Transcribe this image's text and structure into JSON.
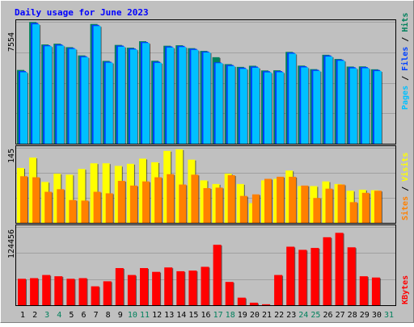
{
  "title": "Daily usage for June 2023",
  "colors": {
    "background": "#c0c0c0",
    "title": "#0000ff",
    "hits": "#00805c",
    "files": "#0040ff",
    "pages": "#00c0ff",
    "visits": "#ffff00",
    "sites": "#ff8000",
    "kbytes": "#ff0000",
    "weekend_label": "#00805c",
    "weekday_label": "#000000"
  },
  "chart_data": [
    {
      "type": "bar",
      "panel": "top",
      "max_label": "7554",
      "ylim": [
        0,
        7554
      ],
      "legend": [
        "Pages",
        "Files",
        "Hits"
      ],
      "categories": [
        "1",
        "2",
        "3",
        "4",
        "5",
        "6",
        "7",
        "8",
        "9",
        "10",
        "11",
        "12",
        "13",
        "14",
        "15",
        "16",
        "17",
        "18",
        "19",
        "20",
        "21",
        "22",
        "23",
        "24",
        "25",
        "26",
        "27",
        "28",
        "29",
        "30",
        "31"
      ],
      "series": [
        {
          "name": "Hits",
          "values": [
            4570,
            7540,
            6150,
            6200,
            5980,
            5470,
            7420,
            5130,
            6120,
            5950,
            6350,
            5140,
            6070,
            6100,
            5920,
            5750,
            5360,
            4930,
            4760,
            4830,
            4540,
            4550,
            5690,
            4840,
            4620,
            5510,
            5250,
            4780,
            4790,
            4610,
            0
          ]
        },
        {
          "name": "Files",
          "values": [
            4500,
            7480,
            6100,
            6150,
            5930,
            5420,
            7360,
            5080,
            6080,
            5900,
            6300,
            5080,
            6030,
            6060,
            5880,
            5710,
            5040,
            4880,
            4710,
            4780,
            4490,
            4500,
            5650,
            4800,
            4580,
            5470,
            5210,
            4740,
            4750,
            4570,
            0
          ]
        },
        {
          "name": "Pages",
          "values": [
            4430,
            7400,
            6040,
            6080,
            5870,
            5360,
            7290,
            5020,
            6010,
            5840,
            6240,
            5010,
            5960,
            5990,
            5810,
            5650,
            4990,
            4810,
            4640,
            4710,
            4420,
            4430,
            5580,
            4730,
            4510,
            5400,
            5140,
            4670,
            4680,
            4500,
            0
          ]
        }
      ]
    },
    {
      "type": "bar",
      "panel": "middle",
      "max_label": "145",
      "ylim": [
        0,
        145
      ],
      "legend": [
        "Sites",
        "Visits"
      ],
      "categories": [
        "1",
        "2",
        "3",
        "4",
        "5",
        "6",
        "7",
        "8",
        "9",
        "10",
        "11",
        "12",
        "13",
        "14",
        "15",
        "16",
        "17",
        "18",
        "19",
        "20",
        "21",
        "22",
        "23",
        "24",
        "25",
        "26",
        "27",
        "28",
        "29",
        "30",
        "31"
      ],
      "series": [
        {
          "name": "Visits",
          "values": [
            106,
            126,
            79,
            95,
            93,
            104,
            115,
            115,
            110,
            114,
            124,
            117,
            139,
            142,
            122,
            82,
            75,
            95,
            75,
            38,
            82,
            85,
            101,
            71,
            71,
            80,
            75,
            62,
            64,
            63,
            0
          ]
        },
        {
          "name": "Sites",
          "values": [
            90,
            88,
            60,
            65,
            44,
            43,
            60,
            57,
            81,
            72,
            80,
            88,
            94,
            74,
            93,
            67,
            68,
            92,
            52,
            55,
            85,
            89,
            89,
            72,
            48,
            66,
            74,
            40,
            58,
            62,
            0
          ]
        }
      ]
    },
    {
      "type": "bar",
      "panel": "bottom",
      "max_label": "124456",
      "ylim": [
        0,
        124456
      ],
      "legend": [
        "KBytes"
      ],
      "categories": [
        "1",
        "2",
        "3",
        "4",
        "5",
        "6",
        "7",
        "8",
        "9",
        "10",
        "11",
        "12",
        "13",
        "14",
        "15",
        "16",
        "17",
        "18",
        "19",
        "20",
        "21",
        "22",
        "23",
        "24",
        "25",
        "26",
        "27",
        "28",
        "29",
        "30",
        "31"
      ],
      "series": [
        {
          "name": "KBytes",
          "values": [
            42000,
            43000,
            48000,
            46000,
            42000,
            43000,
            30000,
            38000,
            59000,
            48000,
            59000,
            53000,
            60000,
            54000,
            55000,
            61000,
            96000,
            37000,
            12000,
            4000,
            1500,
            48000,
            93000,
            88000,
            91000,
            108000,
            115000,
            92000,
            46000,
            44000,
            0
          ]
        }
      ]
    }
  ]
}
